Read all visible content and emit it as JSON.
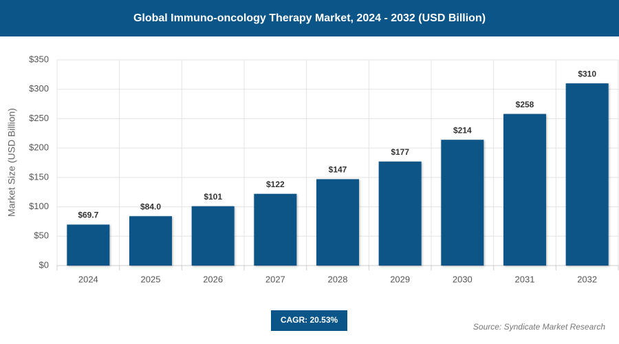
{
  "chart_data": {
    "type": "bar",
    "title": "Global Immuno-oncology Therapy Market, 2024 - 2032 (USD Billion)",
    "y_label": "Market Size (USD Billion)",
    "categories": [
      "2024",
      "2025",
      "2026",
      "2027",
      "2028",
      "2029",
      "2030",
      "2031",
      "2032"
    ],
    "values": [
      69.7,
      84.0,
      101,
      122,
      147,
      177,
      214,
      258,
      310
    ],
    "value_labels": [
      "$69.7",
      "$84.0",
      "$101",
      "$122",
      "$147",
      "$177",
      "$214",
      "$258",
      "$310"
    ],
    "color": "#0d5587",
    "ylim": [
      0,
      350
    ],
    "yticks": [
      {
        "value": 0,
        "label": "$0"
      },
      {
        "value": 50,
        "label": "$50"
      },
      {
        "value": 100,
        "label": "$100"
      },
      {
        "value": 150,
        "label": "$150"
      },
      {
        "value": 200,
        "label": "$200"
      },
      {
        "value": 250,
        "label": "$250"
      },
      {
        "value": 300,
        "label": "$300"
      },
      {
        "value": 350,
        "label": "$350"
      }
    ],
    "grid": true,
    "cagr_label": "CAGR: 20.53%",
    "source": "Source: Syndicate Market Research"
  }
}
